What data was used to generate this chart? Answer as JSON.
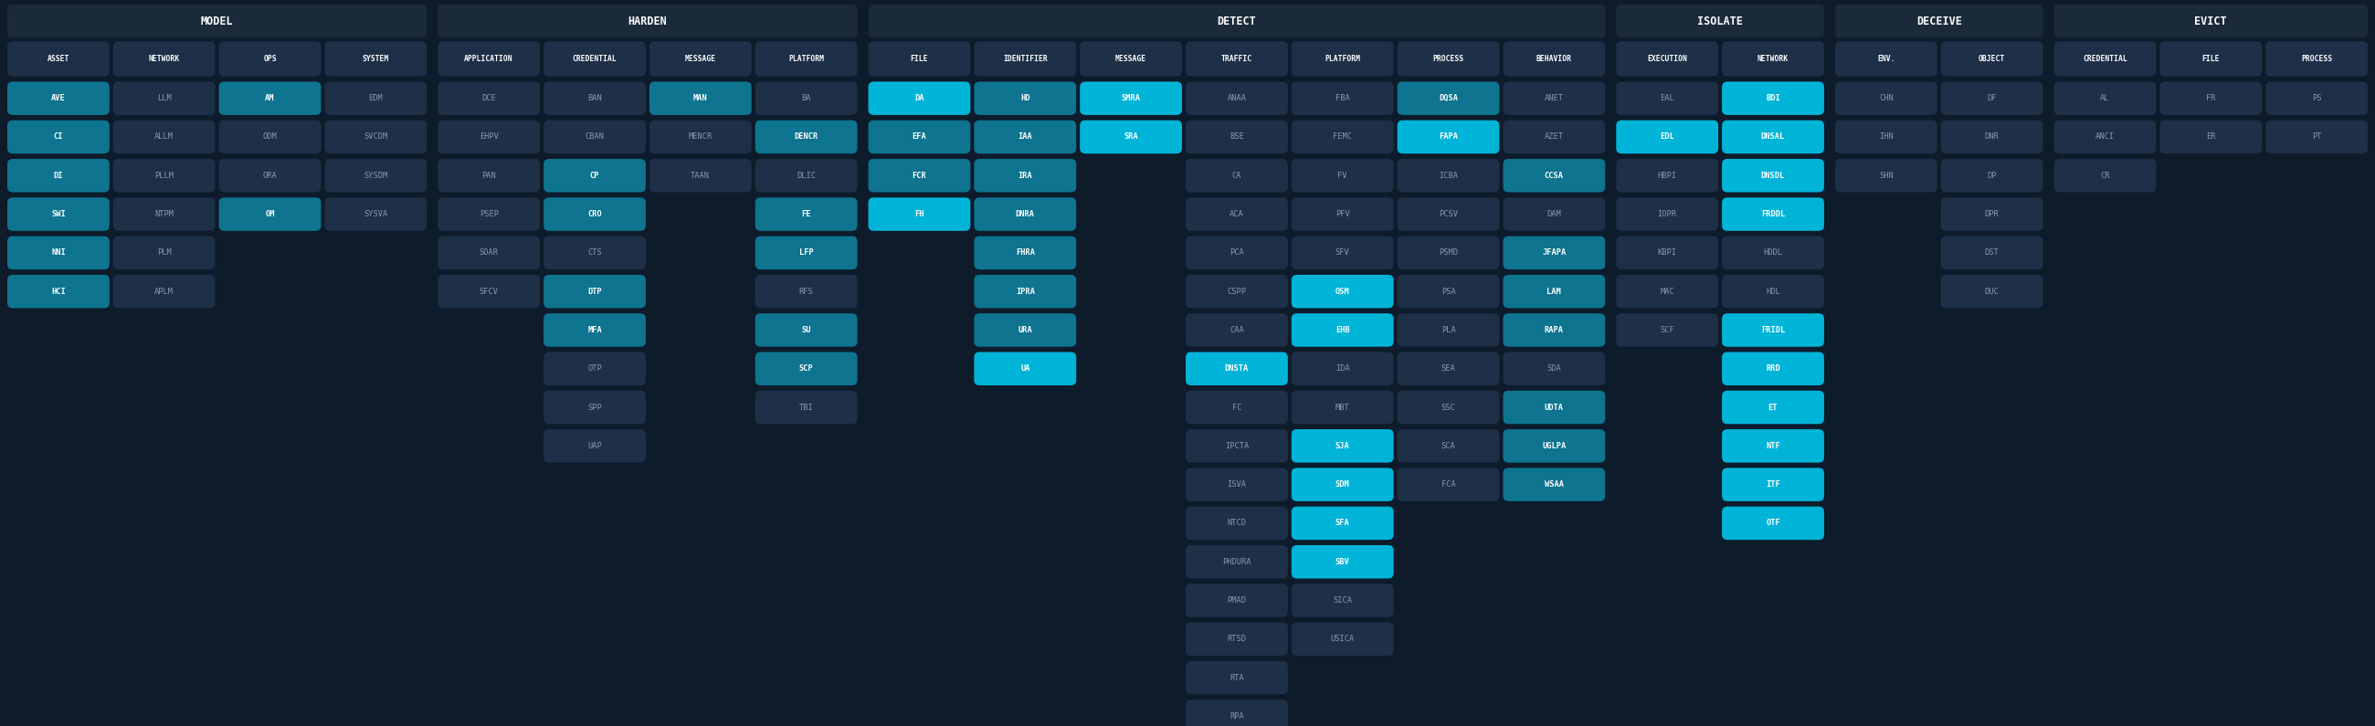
{
  "bg_color": "#0d1b2a",
  "header_bg": "#1a2a3a",
  "cell_dark": "#1e3048",
  "cell_teal_dark": "#1a6070",
  "cell_teal_bright": "#00b4d8",
  "cell_teal_mid": "#0e7490",
  "text_white": "#ffffff",
  "text_dim": "#8899aa",
  "sections": [
    {
      "name": "MODEL",
      "columns": [
        {
          "header": "ASSET",
          "items": [
            [
              "AVE",
              true
            ],
            [
              "CI",
              true
            ],
            [
              "DI",
              true
            ],
            [
              "SWI",
              true
            ],
            [
              "NNI",
              true
            ],
            [
              "HCI",
              true
            ]
          ]
        },
        {
          "header": "NETWORK",
          "items": [
            [
              "LLM",
              false
            ],
            [
              "ALLM",
              false
            ],
            [
              "PLLM",
              false
            ],
            [
              "NTPM",
              false
            ],
            [
              "PLM",
              false
            ],
            [
              "APLM",
              false
            ]
          ]
        },
        {
          "header": "OPS",
          "items": [
            [
              "AM",
              true
            ],
            [
              "ODM",
              false
            ],
            [
              "ORA",
              false
            ],
            [
              "OM",
              true
            ]
          ]
        },
        {
          "header": "SYSTEM",
          "items": [
            [
              "EDM",
              false
            ],
            [
              "SVCDM",
              false
            ],
            [
              "SYSDM",
              false
            ],
            [
              "SYSVA",
              false
            ]
          ]
        }
      ]
    },
    {
      "name": "HARDEN",
      "columns": [
        {
          "header": "APPLICATION",
          "items": [
            [
              "DCE",
              false
            ],
            [
              "EHPV",
              false
            ],
            [
              "PAN",
              false
            ],
            [
              "PSEP",
              false
            ],
            [
              "SOAR",
              false
            ],
            [
              "SFCV",
              false
            ]
          ]
        },
        {
          "header": "CREDENTIAL",
          "items": [
            [
              "BAN",
              false
            ],
            [
              "CBAN",
              false
            ],
            [
              "CP",
              true
            ],
            [
              "CRO",
              true
            ],
            [
              "CTS",
              false
            ],
            [
              "DTP",
              true
            ],
            [
              "MFA",
              true
            ],
            [
              "OTP",
              false
            ],
            [
              "SPP",
              false
            ],
            [
              "UAP",
              false
            ]
          ]
        },
        {
          "header": "MESSAGE",
          "items": [
            [
              "MAN",
              true
            ],
            [
              "MENCR",
              false
            ],
            [
              "TAAN",
              false
            ]
          ]
        },
        {
          "header": "PLATFORM",
          "items": [
            [
              "BA",
              false
            ],
            [
              "DENCR",
              true
            ],
            [
              "DLIC",
              false
            ],
            [
              "FE",
              true
            ],
            [
              "LFP",
              true
            ],
            [
              "RFS",
              false
            ],
            [
              "SU",
              true
            ],
            [
              "SCP",
              true
            ],
            [
              "TBI",
              false
            ]
          ]
        }
      ]
    },
    {
      "name": "DETECT",
      "columns": [
        {
          "header": "FILE",
          "items": [
            [
              "DA",
              true
            ],
            [
              "EFA",
              true
            ],
            [
              "FCR",
              true
            ],
            [
              "FH",
              true
            ]
          ]
        },
        {
          "header": "IDENTIFIER",
          "items": [
            [
              "HD",
              true
            ],
            [
              "IAA",
              true
            ],
            [
              "IRA",
              true
            ],
            [
              "DNRA",
              true
            ],
            [
              "FHRA",
              true
            ],
            [
              "IPRA",
              true
            ],
            [
              "URA",
              true
            ],
            [
              "UA",
              true
            ]
          ]
        },
        {
          "header": "MESSAGE",
          "items": [
            [
              "SMRA",
              true
            ],
            [
              "SRA",
              true
            ]
          ]
        },
        {
          "header": "TRAFFIC",
          "items": [
            [
              "ANAA",
              false
            ],
            [
              "BSE",
              false
            ],
            [
              "CA",
              false
            ],
            [
              "ACA",
              false
            ],
            [
              "PCA",
              false
            ],
            [
              "CSPP",
              false
            ],
            [
              "CAA",
              false
            ],
            [
              "DNSTA",
              true
            ],
            [
              "FC",
              false
            ],
            [
              "IPCTA",
              false
            ],
            [
              "ISVA",
              false
            ],
            [
              "NTCD",
              false
            ],
            [
              "PHDURA",
              false
            ],
            [
              "PMAD",
              false
            ],
            [
              "RTSD",
              false
            ],
            [
              "RTA",
              false
            ],
            [
              "RPA",
              false
            ]
          ]
        },
        {
          "header": "PLATFORM",
          "items": [
            [
              "FBA",
              false
            ],
            [
              "FEMC",
              false
            ],
            [
              "FV",
              false
            ],
            [
              "PFV",
              false
            ],
            [
              "SFV",
              false
            ],
            [
              "OSM",
              true
            ],
            [
              "EHB",
              true
            ],
            [
              "IDA",
              false
            ],
            [
              "MBT",
              false
            ],
            [
              "SJA",
              true
            ],
            [
              "SDM",
              true
            ],
            [
              "SFA",
              true
            ],
            [
              "SBV",
              true
            ],
            [
              "SICA",
              false
            ],
            [
              "USICA",
              false
            ]
          ]
        },
        {
          "header": "PROCESS",
          "items": [
            [
              "DQSA",
              true
            ],
            [
              "FAPA",
              true
            ],
            [
              "ICBA",
              false
            ],
            [
              "PCSV",
              false
            ],
            [
              "PSMD",
              false
            ],
            [
              "PSA",
              false
            ],
            [
              "PLA",
              false
            ],
            [
              "SEA",
              false
            ],
            [
              "SSC",
              false
            ],
            [
              "SCA",
              false
            ],
            [
              "FCA",
              false
            ]
          ]
        },
        {
          "header": "BEHAVIOR",
          "items": [
            [
              "ANET",
              false
            ],
            [
              "AZET",
              false
            ],
            [
              "CCSA",
              true
            ],
            [
              "DAM",
              false
            ],
            [
              "JFAPA",
              true
            ],
            [
              "LAM",
              true
            ],
            [
              "RAPA",
              true
            ],
            [
              "SDA",
              false
            ],
            [
              "UDTA",
              true
            ],
            [
              "UGLPA",
              true
            ],
            [
              "WSAA",
              true
            ]
          ]
        }
      ]
    },
    {
      "name": "ISOLATE",
      "columns": [
        {
          "header": "EXECUTION",
          "items": [
            [
              "EAL",
              false
            ],
            [
              "EDL",
              true
            ],
            [
              "HBPI",
              false
            ],
            [
              "IOPR",
              false
            ],
            [
              "KBPI",
              false
            ],
            [
              "MAC",
              false
            ],
            [
              "SCF",
              false
            ]
          ]
        },
        {
          "header": "NETWORK",
          "items": [
            [
              "BDI",
              true
            ],
            [
              "DNSAL",
              true
            ],
            [
              "DNSDL",
              true
            ],
            [
              "FRDDL",
              true
            ],
            [
              "HDDL",
              false
            ],
            [
              "HDL",
              false
            ],
            [
              "FRIDL",
              true
            ],
            [
              "RRD",
              true
            ],
            [
              "ET",
              true
            ],
            [
              "NTF",
              true
            ],
            [
              "ITF",
              true
            ],
            [
              "OTF",
              true
            ]
          ]
        }
      ]
    },
    {
      "name": "DECEIVE",
      "columns": [
        {
          "header": "ENV.",
          "items": [
            [
              "CHN",
              false
            ],
            [
              "IHN",
              false
            ],
            [
              "SHN",
              false
            ]
          ]
        },
        {
          "header": "OBJECT",
          "items": [
            [
              "DF",
              false
            ],
            [
              "DNR",
              false
            ],
            [
              "DP",
              false
            ],
            [
              "DPR",
              false
            ],
            [
              "DST",
              false
            ],
            [
              "DUC",
              false
            ]
          ]
        }
      ]
    },
    {
      "name": "EVICT",
      "columns": [
        {
          "header": "CREDENTIAL",
          "items": [
            [
              "AL",
              false
            ],
            [
              "ANCI",
              false
            ],
            [
              "CR",
              false
            ]
          ]
        },
        {
          "header": "FILE",
          "items": [
            [
              "FR",
              false
            ],
            [
              "ER",
              false
            ]
          ]
        },
        {
          "header": "PROCESS",
          "items": [
            [
              "PS",
              false
            ],
            [
              "PT",
              false
            ]
          ]
        }
      ]
    }
  ]
}
